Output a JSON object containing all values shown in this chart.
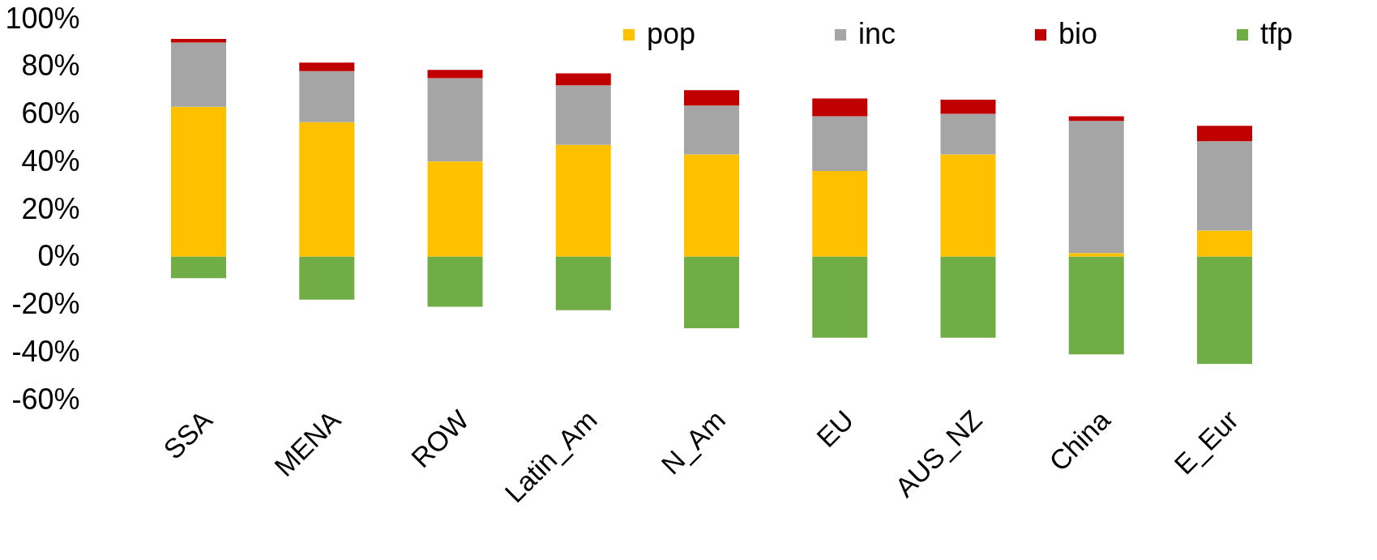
{
  "chart_data": {
    "type": "bar",
    "stacked": true,
    "categories": [
      "SSA",
      "MENA",
      "ROW",
      "Latin_Am",
      "N_Am",
      "EU",
      "AUS_NZ",
      "China",
      "E_Eur"
    ],
    "series": [
      {
        "name": "pop",
        "color": "#ffc000",
        "values": [
          63,
          56.5,
          40,
          47,
          43,
          36,
          43,
          1.5,
          11
        ]
      },
      {
        "name": "inc",
        "color": "#a5a5a5",
        "values": [
          27,
          21.5,
          35,
          25,
          20.5,
          23,
          17,
          55.5,
          37.5
        ]
      },
      {
        "name": "bio",
        "color": "#c00000",
        "values": [
          1.5,
          3.5,
          3.5,
          5,
          6.5,
          7.5,
          6,
          2,
          6.5
        ]
      },
      {
        "name": "tfp",
        "color": "#70ad47",
        "values": [
          -9,
          -18,
          -21,
          -22.5,
          -30,
          -34,
          -34,
          -41,
          -45
        ]
      }
    ],
    "ylim": [
      -60,
      100
    ],
    "yticks": [
      {
        "value": -60,
        "label": "-60%"
      },
      {
        "value": -40,
        "label": "-40%"
      },
      {
        "value": -20,
        "label": "-20%"
      },
      {
        "value": 0,
        "label": "0%"
      },
      {
        "value": 20,
        "label": "20%"
      },
      {
        "value": 40,
        "label": "40%"
      },
      {
        "value": 60,
        "label": "60%"
      },
      {
        "value": 80,
        "label": "80%"
      },
      {
        "value": 100,
        "label": "100%"
      }
    ],
    "grid": false,
    "legend": "top right"
  }
}
